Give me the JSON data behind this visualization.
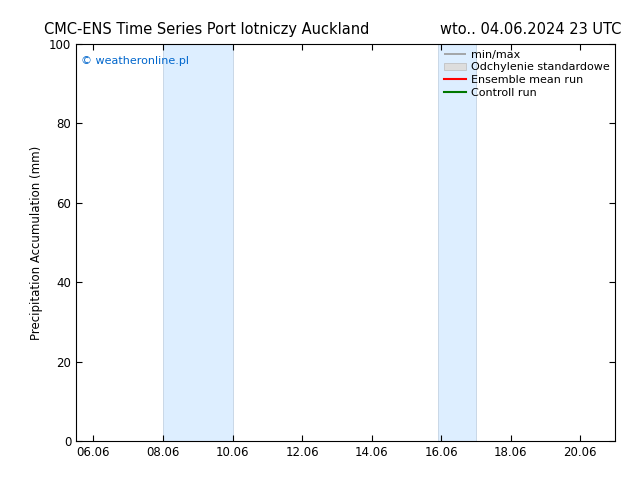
{
  "title_left": "CMC-ENS Time Series Port lotniczy Auckland",
  "title_right": "wto.. 04.06.2024 23 UTC",
  "ylabel": "Precipitation Accumulation (mm)",
  "watermark": "© weatheronline.pl",
  "watermark_color": "#0066cc",
  "ylim": [
    0,
    100
  ],
  "yticks": [
    0,
    20,
    40,
    60,
    80,
    100
  ],
  "xlim_start": 5.5,
  "xlim_end": 21.0,
  "xtick_labels": [
    "06.06",
    "08.06",
    "10.06",
    "12.06",
    "14.06",
    "16.06",
    "18.06",
    "20.06"
  ],
  "xtick_positions": [
    6.0,
    8.0,
    10.0,
    12.0,
    14.0,
    16.0,
    18.0,
    20.0
  ],
  "shaded_bands": [
    {
      "x_start": 8.0,
      "x_end": 10.0
    },
    {
      "x_start": 15.9,
      "x_end": 17.0
    }
  ],
  "band_color": "#ddeeff",
  "band_edge_color": "#bbccdd",
  "legend_items": [
    {
      "label": "min/max",
      "color": "#999999",
      "linewidth": 1.2,
      "linestyle": "-"
    },
    {
      "label": "Odchylenie standardowe",
      "color": "#cccccc",
      "linewidth": 5,
      "linestyle": "-"
    },
    {
      "label": "Ensemble mean run",
      "color": "#ff0000",
      "linewidth": 1.5,
      "linestyle": "-"
    },
    {
      "label": "Controll run",
      "color": "#007700",
      "linewidth": 1.5,
      "linestyle": "-"
    }
  ],
  "bg_color": "#ffffff",
  "plot_bg_color": "#ffffff",
  "title_fontsize": 10.5,
  "label_fontsize": 8.5,
  "tick_fontsize": 8.5,
  "legend_fontsize": 8,
  "watermark_fontsize": 8
}
